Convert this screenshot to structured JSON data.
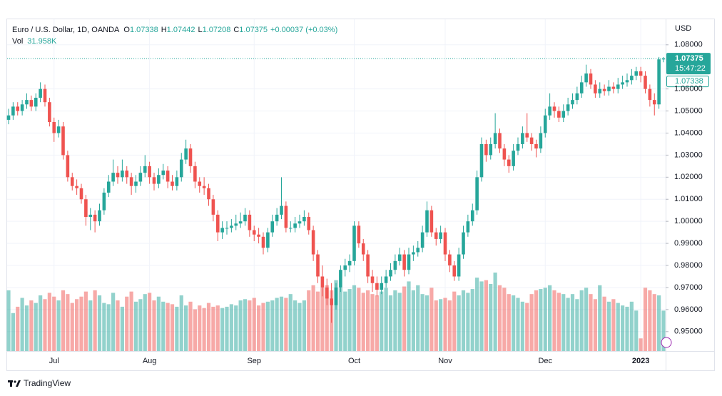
{
  "chart_data": {
    "type": "candlestick",
    "legend": {
      "symbol": "Euro / U.S. Dollar, 1D, OANDA",
      "o_label": "O",
      "h_label": "H",
      "l_label": "L",
      "c_label": "C",
      "change": "+0.00037 (+0.03%)",
      "vol_label": "Vol"
    },
    "last_volume_label": "31.958K",
    "countdown": "15:47:22",
    "currency": "USD",
    "branding": "TradingView",
    "up_color": "#26a69a",
    "down_color": "#ef5350",
    "grid": true,
    "ylim": [
      0.9412,
      1.0919
    ],
    "yticks": [
      {
        "value": 0.95,
        "label": "0.95000"
      },
      {
        "value": 0.96,
        "label": "0.96000"
      },
      {
        "value": 0.97,
        "label": "0.97000"
      },
      {
        "value": 0.98,
        "label": "0.98000"
      },
      {
        "value": 0.99,
        "label": "0.99000"
      },
      {
        "value": 1,
        "label": "1.00000"
      },
      {
        "value": 1.01,
        "label": "1.01000"
      },
      {
        "value": 1.02,
        "label": "1.02000"
      },
      {
        "value": 1.03,
        "label": "1.03000"
      },
      {
        "value": 1.04,
        "label": "1.04000"
      },
      {
        "value": 1.05,
        "label": "1.05000"
      },
      {
        "value": 1.06,
        "label": "1.06000"
      },
      {
        "value": 1.08,
        "label": "1.08000"
      }
    ],
    "categories": [
      null,
      null,
      null,
      null,
      null,
      null,
      null,
      null,
      null,
      null,
      "Jul",
      null,
      null,
      null,
      null,
      null,
      null,
      null,
      null,
      null,
      null,
      null,
      null,
      null,
      null,
      null,
      null,
      null,
      null,
      null,
      null,
      "Aug",
      null,
      null,
      null,
      null,
      null,
      null,
      null,
      null,
      null,
      null,
      null,
      null,
      null,
      null,
      null,
      null,
      null,
      null,
      null,
      null,
      null,
      null,
      "Sep",
      null,
      null,
      null,
      null,
      null,
      null,
      null,
      null,
      null,
      null,
      null,
      null,
      null,
      null,
      null,
      null,
      null,
      null,
      null,
      null,
      null,
      "Oct",
      null,
      null,
      null,
      null,
      null,
      null,
      null,
      null,
      null,
      null,
      null,
      null,
      null,
      null,
      null,
      null,
      null,
      null,
      null,
      "Nov",
      null,
      null,
      null,
      null,
      null,
      null,
      null,
      null,
      null,
      null,
      null,
      null,
      null,
      null,
      null,
      null,
      null,
      null,
      null,
      null,
      null,
      "Dec",
      null,
      null,
      null,
      null,
      null,
      null,
      null,
      null,
      null,
      null,
      null,
      null,
      null,
      null,
      null,
      null,
      null,
      null,
      null,
      null,
      "2023",
      null,
      null,
      null,
      null,
      null
    ],
    "candles": [
      [
        1.046,
        1.051,
        1.044,
        1.048
      ],
      [
        1.048,
        1.054,
        1.046,
        1.052
      ],
      [
        1.052,
        1.054,
        1.048,
        1.05
      ],
      [
        1.05,
        1.055,
        1.048,
        1.053
      ],
      [
        1.053,
        1.058,
        1.051,
        1.055
      ],
      [
        1.055,
        1.057,
        1.05,
        1.052
      ],
      [
        1.052,
        1.058,
        1.05,
        1.056
      ],
      [
        1.056,
        1.063,
        1.054,
        1.06
      ],
      [
        1.06,
        1.062,
        1.052,
        1.054
      ],
      [
        1.054,
        1.056,
        1.043,
        1.045
      ],
      [
        1.045,
        1.047,
        1.036,
        1.04
      ],
      [
        1.04,
        1.046,
        1.038,
        1.043
      ],
      [
        1.043,
        1.045,
        1.028,
        1.03
      ],
      [
        1.03,
        1.032,
        1.018,
        1.02
      ],
      [
        1.02,
        1.022,
        1.014,
        1.016
      ],
      [
        1.016,
        1.019,
        1.012,
        1.015
      ],
      [
        1.015,
        1.017,
        1.008,
        1.01
      ],
      [
        1.01,
        1.012,
        0.998,
        1.002
      ],
      [
        1.002,
        1.006,
        0.996,
        1.003
      ],
      [
        1.003,
        1.005,
        0.995,
        1.0
      ],
      [
        1.0,
        1.008,
        0.998,
        1.005
      ],
      [
        1.005,
        1.015,
        1.003,
        1.013
      ],
      [
        1.013,
        1.021,
        1.011,
        1.018
      ],
      [
        1.018,
        1.028,
        1.016,
        1.022
      ],
      [
        1.022,
        1.025,
        1.017,
        1.02
      ],
      [
        1.02,
        1.028,
        1.018,
        1.023
      ],
      [
        1.023,
        1.025,
        1.017,
        1.02
      ],
      [
        1.02,
        1.022,
        1.012,
        1.016
      ],
      [
        1.016,
        1.021,
        1.013,
        1.018
      ],
      [
        1.018,
        1.025,
        1.016,
        1.022
      ],
      [
        1.022,
        1.03,
        1.02,
        1.025
      ],
      [
        1.025,
        1.027,
        1.017,
        1.02
      ],
      [
        1.02,
        1.022,
        1.014,
        1.017
      ],
      [
        1.017,
        1.024,
        1.015,
        1.021
      ],
      [
        1.021,
        1.026,
        1.019,
        1.023
      ],
      [
        1.023,
        1.025,
        1.015,
        1.018
      ],
      [
        1.018,
        1.021,
        1.014,
        1.016
      ],
      [
        1.016,
        1.023,
        1.014,
        1.02
      ],
      [
        1.02,
        1.031,
        1.018,
        1.028
      ],
      [
        1.028,
        1.037,
        1.026,
        1.033
      ],
      [
        1.033,
        1.035,
        1.022,
        1.025
      ],
      [
        1.025,
        1.027,
        1.015,
        1.018
      ],
      [
        1.018,
        1.02,
        1.013,
        1.016
      ],
      [
        1.016,
        1.02,
        1.012,
        1.015
      ],
      [
        1.015,
        1.017,
        1.007,
        1.01
      ],
      [
        1.01,
        1.012,
        1.0,
        1.003
      ],
      [
        1.003,
        1.005,
        0.991,
        0.995
      ],
      [
        0.995,
        1.0,
        0.992,
        0.997
      ],
      [
        0.997,
        1.0,
        0.994,
        0.997
      ],
      [
        0.997,
        1.001,
        0.995,
        0.998
      ],
      [
        0.998,
        1.003,
        0.996,
        0.999
      ],
      [
        0.999,
        1.004,
        0.997,
        1.0
      ],
      [
        1.0,
        1.006,
        0.998,
        1.003
      ],
      [
        1.003,
        1.005,
        0.993,
        0.996
      ],
      [
        0.996,
        0.998,
        0.991,
        0.994
      ],
      [
        0.994,
        0.997,
        0.99,
        0.993
      ],
      [
        0.993,
        0.995,
        0.985,
        0.988
      ],
      [
        0.988,
        0.997,
        0.986,
        0.995
      ],
      [
        0.995,
        1.003,
        0.993,
        1.0
      ],
      [
        1.0,
        1.006,
        0.998,
        1.003
      ],
      [
        1.003,
        1.02,
        1.001,
        1.007
      ],
      [
        1.007,
        1.009,
        0.995,
        0.997
      ],
      [
        0.997,
        1.0,
        0.995,
        0.997
      ],
      [
        0.997,
        1.002,
        0.995,
        0.999
      ],
      [
        0.999,
        1.003,
        0.997,
        1.0
      ],
      [
        1.0,
        1.005,
        0.998,
        1.002
      ],
      [
        1.002,
        1.004,
        0.994,
        0.996
      ],
      [
        0.996,
        0.998,
        0.982,
        0.985
      ],
      [
        0.985,
        0.987,
        0.972,
        0.975
      ],
      [
        0.975,
        0.98,
        0.966,
        0.97
      ],
      [
        0.97,
        0.974,
        0.962,
        0.965
      ],
      [
        0.965,
        0.972,
        0.954,
        0.962
      ],
      [
        0.962,
        0.972,
        0.96,
        0.97
      ],
      [
        0.97,
        0.98,
        0.968,
        0.978
      ],
      [
        0.978,
        0.983,
        0.975,
        0.98
      ],
      [
        0.98,
        0.985,
        0.977,
        0.982
      ],
      [
        0.982,
        1.0,
        0.98,
        0.998
      ],
      [
        0.998,
        1.0,
        0.988,
        0.99
      ],
      [
        0.99,
        0.992,
        0.982,
        0.985
      ],
      [
        0.985,
        0.987,
        0.972,
        0.975
      ],
      [
        0.975,
        0.978,
        0.968,
        0.972
      ],
      [
        0.972,
        0.975,
        0.966,
        0.969
      ],
      [
        0.969,
        0.975,
        0.967,
        0.972
      ],
      [
        0.972,
        0.978,
        0.97,
        0.975
      ],
      [
        0.975,
        0.981,
        0.973,
        0.978
      ],
      [
        0.978,
        0.985,
        0.976,
        0.982
      ],
      [
        0.982,
        0.988,
        0.98,
        0.985
      ],
      [
        0.985,
        0.987,
        0.975,
        0.978
      ],
      [
        0.978,
        0.988,
        0.976,
        0.985
      ],
      [
        0.985,
        0.989,
        0.982,
        0.986
      ],
      [
        0.986,
        0.991,
        0.984,
        0.988
      ],
      [
        0.988,
        0.998,
        0.986,
        0.995
      ],
      [
        0.995,
        1.009,
        0.993,
        1.005
      ],
      [
        1.005,
        1.007,
        0.993,
        0.995
      ],
      [
        0.995,
        0.997,
        0.989,
        0.992
      ],
      [
        0.992,
        0.998,
        0.99,
        0.995
      ],
      [
        0.995,
        0.997,
        0.982,
        0.985
      ],
      [
        0.985,
        0.987,
        0.977,
        0.98
      ],
      [
        0.98,
        0.982,
        0.973,
        0.975
      ],
      [
        0.975,
        0.988,
        0.973,
        0.985
      ],
      [
        0.985,
        0.998,
        0.983,
        0.995
      ],
      [
        0.995,
        1.003,
        0.993,
        1.0
      ],
      [
        1.0,
        1.008,
        0.998,
        1.005
      ],
      [
        1.005,
        1.023,
        1.003,
        1.02
      ],
      [
        1.02,
        1.038,
        1.018,
        1.035
      ],
      [
        1.035,
        1.037,
        1.027,
        1.03
      ],
      [
        1.03,
        1.038,
        1.028,
        1.035
      ],
      [
        1.035,
        1.049,
        1.033,
        1.04
      ],
      [
        1.04,
        1.042,
        1.031,
        1.033
      ],
      [
        1.033,
        1.035,
        1.025,
        1.028
      ],
      [
        1.028,
        1.03,
        1.022,
        1.025
      ],
      [
        1.025,
        1.035,
        1.023,
        1.032
      ],
      [
        1.032,
        1.038,
        1.03,
        1.035
      ],
      [
        1.035,
        1.043,
        1.033,
        1.04
      ],
      [
        1.04,
        1.049,
        1.036,
        1.038
      ],
      [
        1.038,
        1.04,
        1.032,
        1.035
      ],
      [
        1.035,
        1.037,
        1.029,
        1.033
      ],
      [
        1.033,
        1.043,
        1.031,
        1.04
      ],
      [
        1.04,
        1.051,
        1.038,
        1.048
      ],
      [
        1.048,
        1.058,
        1.046,
        1.052
      ],
      [
        1.052,
        1.054,
        1.047,
        1.05
      ],
      [
        1.05,
        1.052,
        1.045,
        1.047
      ],
      [
        1.047,
        1.053,
        1.045,
        1.05
      ],
      [
        1.05,
        1.056,
        1.048,
        1.053
      ],
      [
        1.053,
        1.058,
        1.051,
        1.055
      ],
      [
        1.055,
        1.061,
        1.053,
        1.058
      ],
      [
        1.058,
        1.066,
        1.056,
        1.063
      ],
      [
        1.063,
        1.071,
        1.061,
        1.067
      ],
      [
        1.067,
        1.069,
        1.06,
        1.062
      ],
      [
        1.062,
        1.064,
        1.056,
        1.058
      ],
      [
        1.058,
        1.063,
        1.056,
        1.06
      ],
      [
        1.06,
        1.062,
        1.057,
        1.059
      ],
      [
        1.059,
        1.064,
        1.057,
        1.061
      ],
      [
        1.061,
        1.063,
        1.058,
        1.06
      ],
      [
        1.06,
        1.065,
        1.058,
        1.062
      ],
      [
        1.062,
        1.066,
        1.06,
        1.063
      ],
      [
        1.063,
        1.067,
        1.061,
        1.064
      ],
      [
        1.064,
        1.069,
        1.062,
        1.066
      ],
      [
        1.066,
        1.07,
        1.064,
        1.068
      ],
      [
        1.068,
        1.07,
        1.063,
        1.066
      ],
      [
        1.066,
        1.068,
        1.058,
        1.06
      ],
      [
        1.06,
        1.062,
        1.052,
        1.055
      ],
      [
        1.055,
        1.058,
        1.048,
        1.053
      ],
      [
        1.053,
        1.0745,
        1.051,
        1.0734
      ],
      [
        1.07338,
        1.07442,
        1.07208,
        1.07375
      ]
    ],
    "volume": [
      48000,
      30000,
      35000,
      42000,
      36000,
      40000,
      38000,
      44000,
      41000,
      46000,
      43000,
      40000,
      48000,
      45000,
      38000,
      41000,
      43000,
      47000,
      40000,
      48000,
      44000,
      38000,
      37000,
      46000,
      40000,
      35000,
      43000,
      47000,
      39000,
      41000,
      45000,
      46000,
      40000,
      43000,
      39000,
      38000,
      37000,
      35000,
      44000,
      36000,
      39000,
      33000,
      36000,
      34000,
      38000,
      35000,
      36000,
      34000,
      35000,
      37000,
      36000,
      40000,
      41000,
      40000,
      42000,
      36000,
      38000,
      39000,
      40000,
      42000,
      43000,
      42000,
      45000,
      40000,
      38000,
      40000,
      48000,
      52000,
      47000,
      50000,
      52000,
      48000,
      56000,
      50000,
      47000,
      49000,
      52000,
      50000,
      46000,
      48000,
      45000,
      44000,
      47000,
      50000,
      44000,
      48000,
      46000,
      51000,
      55000,
      48000,
      52000,
      45000,
      44000,
      50000,
      40000,
      41000,
      42000,
      40000,
      47000,
      44000,
      48000,
      46000,
      49000,
      58000,
      55000,
      56000,
      53000,
      62000,
      52000,
      50000,
      45000,
      44000,
      42000,
      39000,
      38000,
      45000,
      48000,
      49000,
      50000,
      52000,
      48000,
      46000,
      45000,
      42000,
      45000,
      41000,
      48000,
      50000,
      45000,
      41000,
      52000,
      43000,
      39000,
      41000,
      38000,
      36000,
      35000,
      39000,
      32000,
      10000,
      50000,
      48000,
      45000,
      44000,
      31958
    ]
  }
}
